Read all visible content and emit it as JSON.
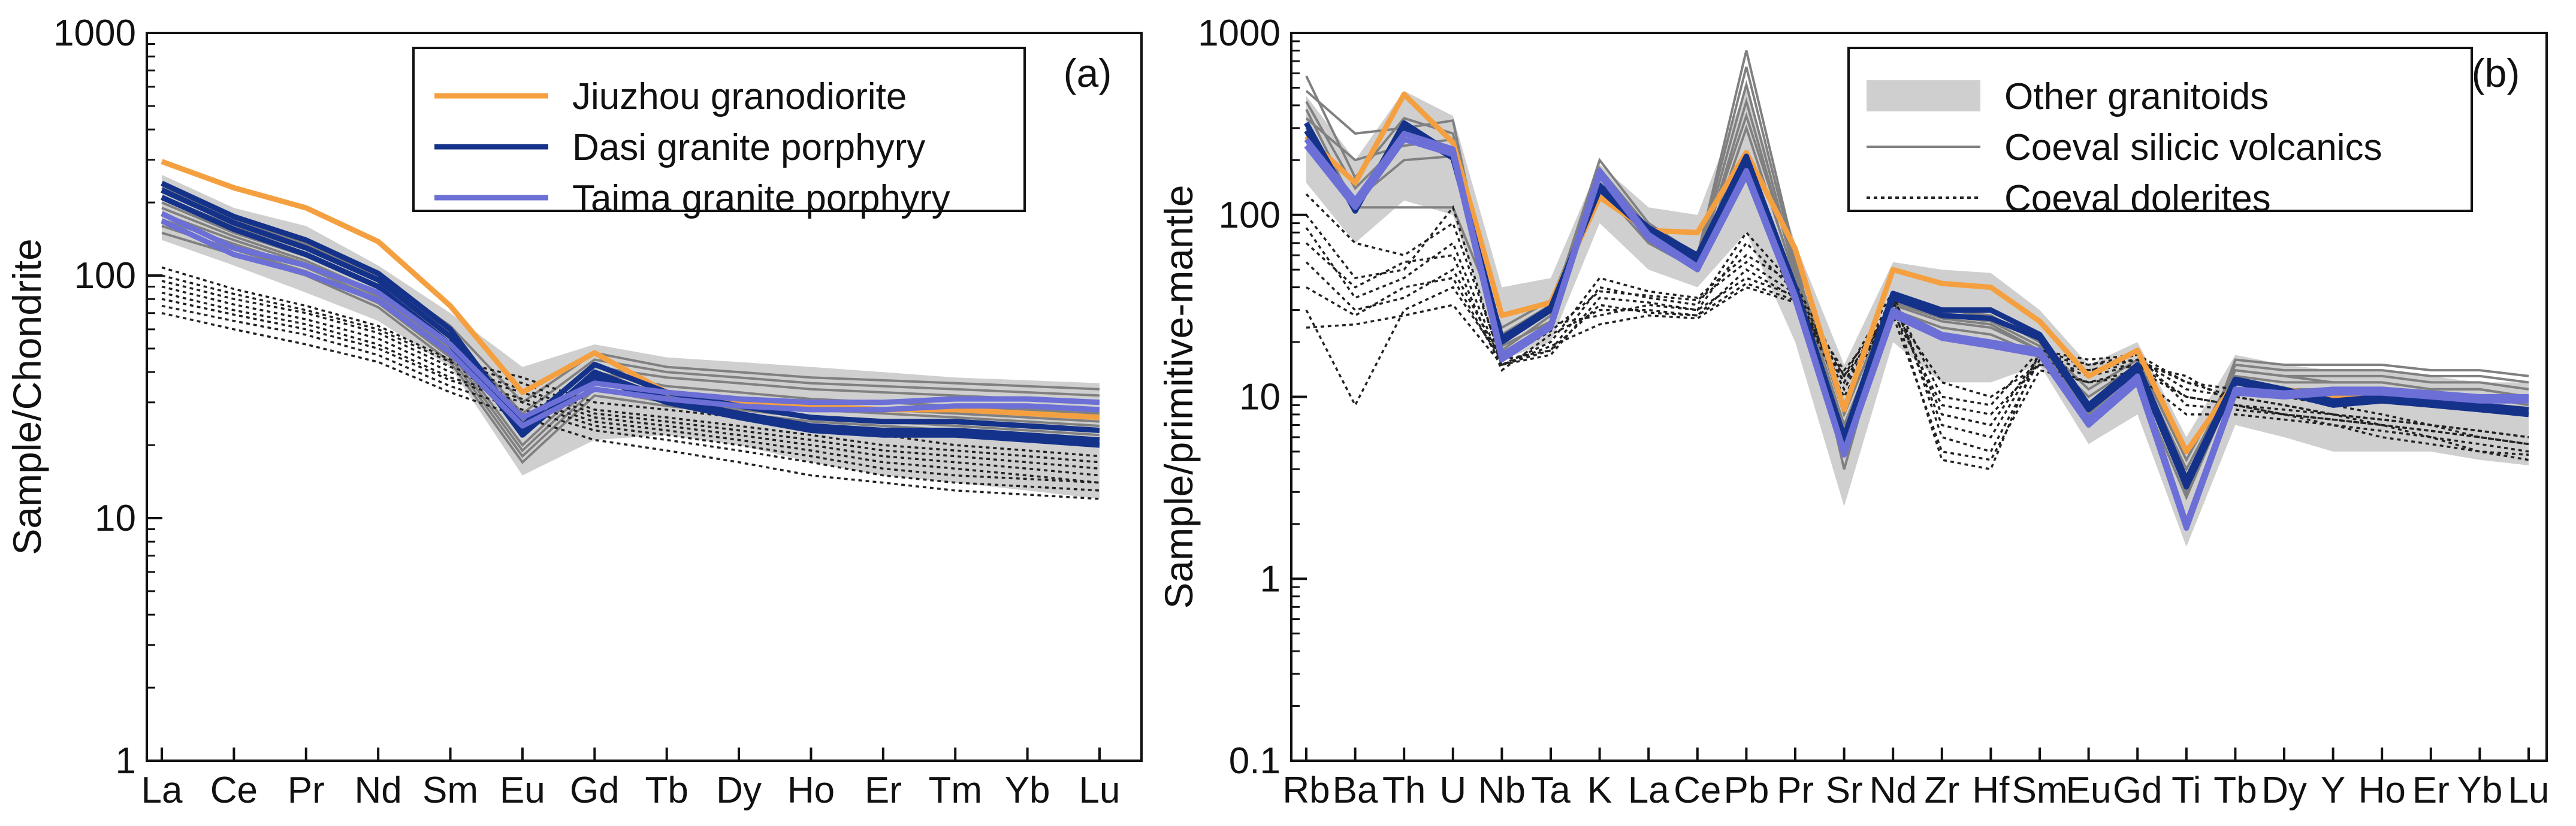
{
  "chart_data": [
    {
      "type": "line",
      "panel_label": "(a)",
      "ylabel": "Sample/Chondrite",
      "xlabel": "",
      "yscale": "log",
      "ylim": [
        1,
        1000
      ],
      "y_ticks": [
        "1",
        "10",
        "100",
        "1000"
      ],
      "y_tick_values": [
        1,
        10,
        100,
        1000
      ],
      "categories": [
        "La",
        "Ce",
        "Pr",
        "Nd",
        "Sm",
        "Eu",
        "Gd",
        "Tb",
        "Dy",
        "Ho",
        "Er",
        "Tm",
        "Yb",
        "Lu"
      ],
      "legend": [
        {
          "label": "Jiuzhou granodiorite",
          "color": "#f5a040",
          "style": "solid"
        },
        {
          "label": "Dasi granite porphyry",
          "color": "#15328a",
          "style": "solid"
        },
        {
          "label": "Taima granite porphyry",
          "color": "#6b6fd6",
          "style": "solid"
        }
      ],
      "envelope": {
        "name": "Other granitoids",
        "color": "#cfcfcf",
        "upper": [
          260,
          190,
          160,
          110,
          70,
          42,
          52,
          46,
          44,
          42,
          40,
          38,
          37,
          36
        ],
        "lower": [
          140,
          110,
          85,
          65,
          42,
          15,
          21,
          22,
          20,
          17,
          15,
          14,
          13,
          12
        ]
      },
      "volcanic_lines": {
        "name": "Coeval silicic volcanics",
        "color": "#808080",
        "series": [
          [
            230,
            170,
            135,
            100,
            62,
            30,
            48,
            42,
            40,
            38,
            37,
            36,
            35,
            34
          ],
          [
            210,
            160,
            128,
            96,
            58,
            27,
            45,
            40,
            38,
            36,
            35,
            34,
            33,
            32
          ],
          [
            200,
            150,
            120,
            90,
            55,
            25,
            42,
            38,
            36,
            34,
            33,
            32,
            31,
            30
          ],
          [
            190,
            145,
            115,
            85,
            52,
            22,
            40,
            35,
            33,
            31,
            30,
            29,
            28,
            27
          ],
          [
            180,
            140,
            112,
            82,
            50,
            20,
            38,
            33,
            31,
            29,
            28,
            27,
            26,
            25
          ],
          [
            170,
            135,
            108,
            80,
            48,
            19,
            36,
            32,
            30,
            28,
            27,
            26,
            25,
            24
          ],
          [
            160,
            128,
            104,
            77,
            46,
            18,
            34,
            30,
            28,
            26,
            25,
            24,
            23,
            22
          ],
          [
            150,
            122,
            100,
            74,
            44,
            17,
            32,
            29,
            27,
            25,
            24,
            23,
            22,
            21
          ]
        ]
      },
      "dolerite_lines": {
        "name": "Coeval dolerites",
        "color": "#222222",
        "series": [
          [
            108,
            88,
            75,
            62,
            45,
            38,
            30,
            28,
            26,
            24,
            22,
            20,
            19,
            18
          ],
          [
            100,
            84,
            72,
            60,
            44,
            36,
            28,
            26,
            24,
            22,
            20,
            19,
            18,
            17
          ],
          [
            95,
            80,
            70,
            58,
            42,
            34,
            27,
            25,
            23,
            21,
            19,
            18,
            17,
            16
          ],
          [
            90,
            76,
            66,
            55,
            40,
            33,
            26,
            24,
            22,
            20,
            18,
            17,
            16,
            15
          ],
          [
            85,
            72,
            63,
            52,
            38,
            31,
            25,
            23,
            21,
            19,
            17,
            16,
            15,
            14
          ],
          [
            80,
            69,
            60,
            50,
            37,
            30,
            24,
            22,
            20,
            18,
            16,
            15,
            14.5,
            14
          ],
          [
            75,
            65,
            57,
            47,
            35,
            28,
            23,
            21,
            19,
            17,
            15,
            14,
            13.5,
            13
          ],
          [
            70,
            60,
            52,
            44,
            33,
            26,
            21,
            19,
            17,
            15,
            14,
            13,
            12.5,
            12
          ]
        ]
      },
      "series": [
        {
          "name": "Jiuzhou granodiorite",
          "color": "#f5a040",
          "values": [
            295,
            230,
            190,
            138,
            75,
            33,
            48,
            33,
            30,
            29,
            28,
            28,
            27,
            26
          ]
        },
        {
          "name": "Dasi granite porphyry",
          "color": "#15328a",
          "values": [
            240,
            175,
            140,
            102,
            60,
            24,
            43,
            33,
            29,
            26,
            25,
            25,
            24,
            23
          ]
        },
        {
          "name": "Dasi granite porphyry",
          "color": "#15328a",
          "values": [
            225,
            165,
            130,
            96,
            56,
            22,
            40,
            31,
            27,
            24,
            23,
            23,
            22,
            21
          ]
        },
        {
          "name": "Dasi granite porphyry",
          "color": "#15328a",
          "values": [
            210,
            155,
            122,
            90,
            52,
            23,
            38,
            30,
            26,
            23,
            22,
            22,
            21,
            20
          ]
        },
        {
          "name": "Taima granite porphyry",
          "color": "#6b6fd6",
          "values": [
            180,
            130,
            110,
            85,
            52,
            26,
            36,
            33,
            31,
            30,
            30,
            31,
            31,
            30
          ]
        },
        {
          "name": "Taima granite porphyry",
          "color": "#6b6fd6",
          "values": [
            168,
            122,
            102,
            79,
            48,
            24,
            34,
            31,
            29,
            28,
            28,
            29,
            29,
            28
          ]
        }
      ]
    },
    {
      "type": "line",
      "panel_label": "(b)",
      "ylabel": "Sample/primitive-mantle",
      "xlabel": "",
      "yscale": "log",
      "ylim": [
        0.1,
        1000
      ],
      "y_ticks": [
        "0.1",
        "1",
        "10",
        "100",
        "1000"
      ],
      "y_tick_values": [
        0.1,
        1,
        10,
        100,
        1000
      ],
      "categories": [
        "Rb",
        "Ba",
        "Th",
        "U",
        "Nb",
        "Ta",
        "K",
        "La",
        "Ce",
        "Pb",
        "Pr",
        "Sr",
        "Nd",
        "Zr",
        "Hf",
        "Sm",
        "Eu",
        "Gd",
        "Ti",
        "Tb",
        "Dy",
        "Y",
        "Ho",
        "Er",
        "Yb",
        "Lu"
      ],
      "legend": [
        {
          "label": "Other granitoids",
          "color": "#cfcfcf",
          "style": "band"
        },
        {
          "label": "Coeval silicic volcanics",
          "color": "#808080",
          "style": "solid"
        },
        {
          "label": "Coeval dolerites",
          "color": "#222222",
          "style": "dotted"
        }
      ],
      "envelope": {
        "name": "Other granitoids",
        "color": "#cfcfcf",
        "upper": [
          450,
          200,
          480,
          350,
          40,
          45,
          190,
          110,
          100,
          500,
          70,
          15,
          55,
          50,
          48,
          30,
          15,
          20,
          6,
          17,
          15,
          14,
          14,
          13,
          12,
          12
        ],
        "lower": [
          150,
          70,
          120,
          100,
          16,
          20,
          90,
          50,
          40,
          80,
          20,
          2.5,
          20,
          12,
          12,
          15,
          5.5,
          8,
          1.5,
          7,
          6,
          5,
          5,
          5,
          4.5,
          4.2
        ]
      },
      "volcanic_lines": {
        "name": "Coeval silicic volcanics",
        "color": "#808080",
        "series": [
          [
            580,
            160,
            340,
            280,
            20,
            30,
            200,
            90,
            60,
            800,
            60,
            4,
            35,
            30,
            28,
            20,
            8,
            15,
            3,
            16,
            15,
            15,
            15,
            14,
            14,
            13
          ],
          [
            480,
            280,
            300,
            330,
            18,
            28,
            180,
            85,
            58,
            650,
            55,
            5,
            34,
            28,
            26,
            19,
            8,
            14,
            3.2,
            15,
            14,
            14,
            14,
            13,
            13,
            12
          ],
          [
            420,
            140,
            260,
            230,
            22,
            32,
            160,
            80,
            55,
            520,
            50,
            6,
            33,
            27,
            25,
            18,
            9,
            14,
            3.5,
            14,
            13,
            13,
            13,
            12,
            12,
            11
          ],
          [
            380,
            110,
            110,
            110,
            24,
            34,
            150,
            75,
            52,
            420,
            48,
            7,
            32,
            26,
            24,
            18,
            10,
            15,
            4,
            13,
            12,
            12,
            12,
            11,
            11,
            10
          ],
          [
            340,
            200,
            240,
            260,
            21,
            30,
            170,
            82,
            56,
            350,
            52,
            8,
            36,
            30,
            28,
            20,
            11,
            16,
            4.5,
            14,
            13,
            12,
            12,
            11,
            11,
            10
          ],
          [
            300,
            120,
            200,
            210,
            19,
            26,
            140,
            70,
            50,
            300,
            45,
            5,
            30,
            24,
            22,
            17,
            7,
            12,
            2.8,
            12,
            11,
            11,
            11,
            10,
            10,
            9
          ]
        ]
      },
      "dolerite_lines": {
        "name": "Coeval dolerites",
        "color": "#222222",
        "series": [
          [
            130,
            70,
            60,
            90,
            16,
            18,
            40,
            35,
            32,
            80,
            40,
            12,
            35,
            10,
            9,
            18,
            15,
            17,
            12,
            11,
            10,
            9,
            8,
            7,
            6.5,
            6
          ],
          [
            100,
            45,
            50,
            110,
            15,
            17,
            35,
            33,
            30,
            70,
            38,
            11,
            33,
            8,
            7,
            17,
            14,
            16,
            11,
            10,
            9,
            8,
            7.5,
            7,
            6,
            5.5
          ],
          [
            85,
            35,
            45,
            70,
            15,
            20,
            45,
            38,
            35,
            60,
            42,
            13,
            38,
            6,
            5,
            16,
            13,
            15,
            13,
            9,
            8.5,
            8,
            7,
            6.5,
            6,
            5.5
          ],
          [
            70,
            40,
            55,
            60,
            14,
            22,
            30,
            30,
            28,
            50,
            35,
            14,
            30,
            12,
            10,
            15,
            12,
            14,
            10,
            9,
            8,
            7.5,
            7,
            6,
            5.5,
            5
          ],
          [
            55,
            30,
            35,
            50,
            16,
            25,
            28,
            32,
            30,
            45,
            36,
            10,
            32,
            4.5,
            4,
            18,
            16,
            17,
            9,
            8.5,
            8,
            7,
            6.5,
            6,
            5,
            4.8
          ],
          [
            40,
            28,
            40,
            45,
            15,
            19,
            25,
            28,
            27,
            40,
            33,
            12,
            28,
            5,
            4.5,
            14,
            12,
            13,
            8,
            8,
            7.5,
            7,
            6,
            5.5,
            5,
            4.5
          ],
          [
            30,
            9,
            30,
            40,
            16,
            23,
            38,
            36,
            34,
            55,
            37,
            11,
            34,
            7,
            6,
            17,
            15,
            16,
            12,
            10,
            9,
            8,
            7.5,
            7,
            6.5,
            6
          ],
          [
            24,
            25,
            28,
            32,
            15,
            18,
            32,
            29,
            28,
            42,
            34,
            13,
            29,
            9,
            8,
            15,
            14,
            15,
            10,
            9,
            8,
            7.5,
            7,
            6.5,
            6,
            5.5
          ]
        ]
      },
      "series": [
        {
          "name": "Jiuzhou granodiorite",
          "color": "#f5a040",
          "values": [
            270,
            150,
            460,
            250,
            28,
            33,
            125,
            82,
            80,
            220,
            65,
            8.5,
            50,
            42,
            40,
            26,
            13,
            18,
            5,
            12,
            11,
            10,
            10,
            9.5,
            9,
            8.5
          ]
        },
        {
          "name": "Dasi granite porphyry",
          "color": "#15328a",
          "values": [
            320,
            105,
            320,
            215,
            20,
            30,
            145,
            85,
            60,
            210,
            40,
            6,
            37,
            30,
            30,
            22,
            9,
            15,
            3.5,
            12.5,
            11,
            9.5,
            10,
            9.5,
            9,
            8.5
          ]
        },
        {
          "name": "Dasi granite porphyry",
          "color": "#15328a",
          "values": [
            290,
            112,
            300,
            205,
            21,
            31,
            138,
            80,
            56,
            195,
            38,
            5.5,
            35,
            28,
            27,
            21,
            8.5,
            14,
            3.2,
            12,
            10.5,
            9,
            9.5,
            9,
            8.5,
            8
          ]
        },
        {
          "name": "Taima granite porphyry",
          "color": "#6b6fd6",
          "values": [
            260,
            120,
            280,
            230,
            17,
            25,
            175,
            78,
            52,
            175,
            36,
            5,
            30,
            22,
            20,
            18,
            7.5,
            13,
            2,
            11,
            10.5,
            11,
            11,
            10.5,
            10,
            10
          ]
        },
        {
          "name": "Taima granite porphyry",
          "color": "#6b6fd6",
          "values": [
            240,
            110,
            260,
            215,
            16,
            24,
            165,
            74,
            50,
            165,
            34,
            4.8,
            28,
            21,
            19,
            17,
            7,
            12,
            1.9,
            10.5,
            10,
            10.5,
            10.5,
            10,
            9.5,
            9.5
          ]
        }
      ]
    }
  ]
}
